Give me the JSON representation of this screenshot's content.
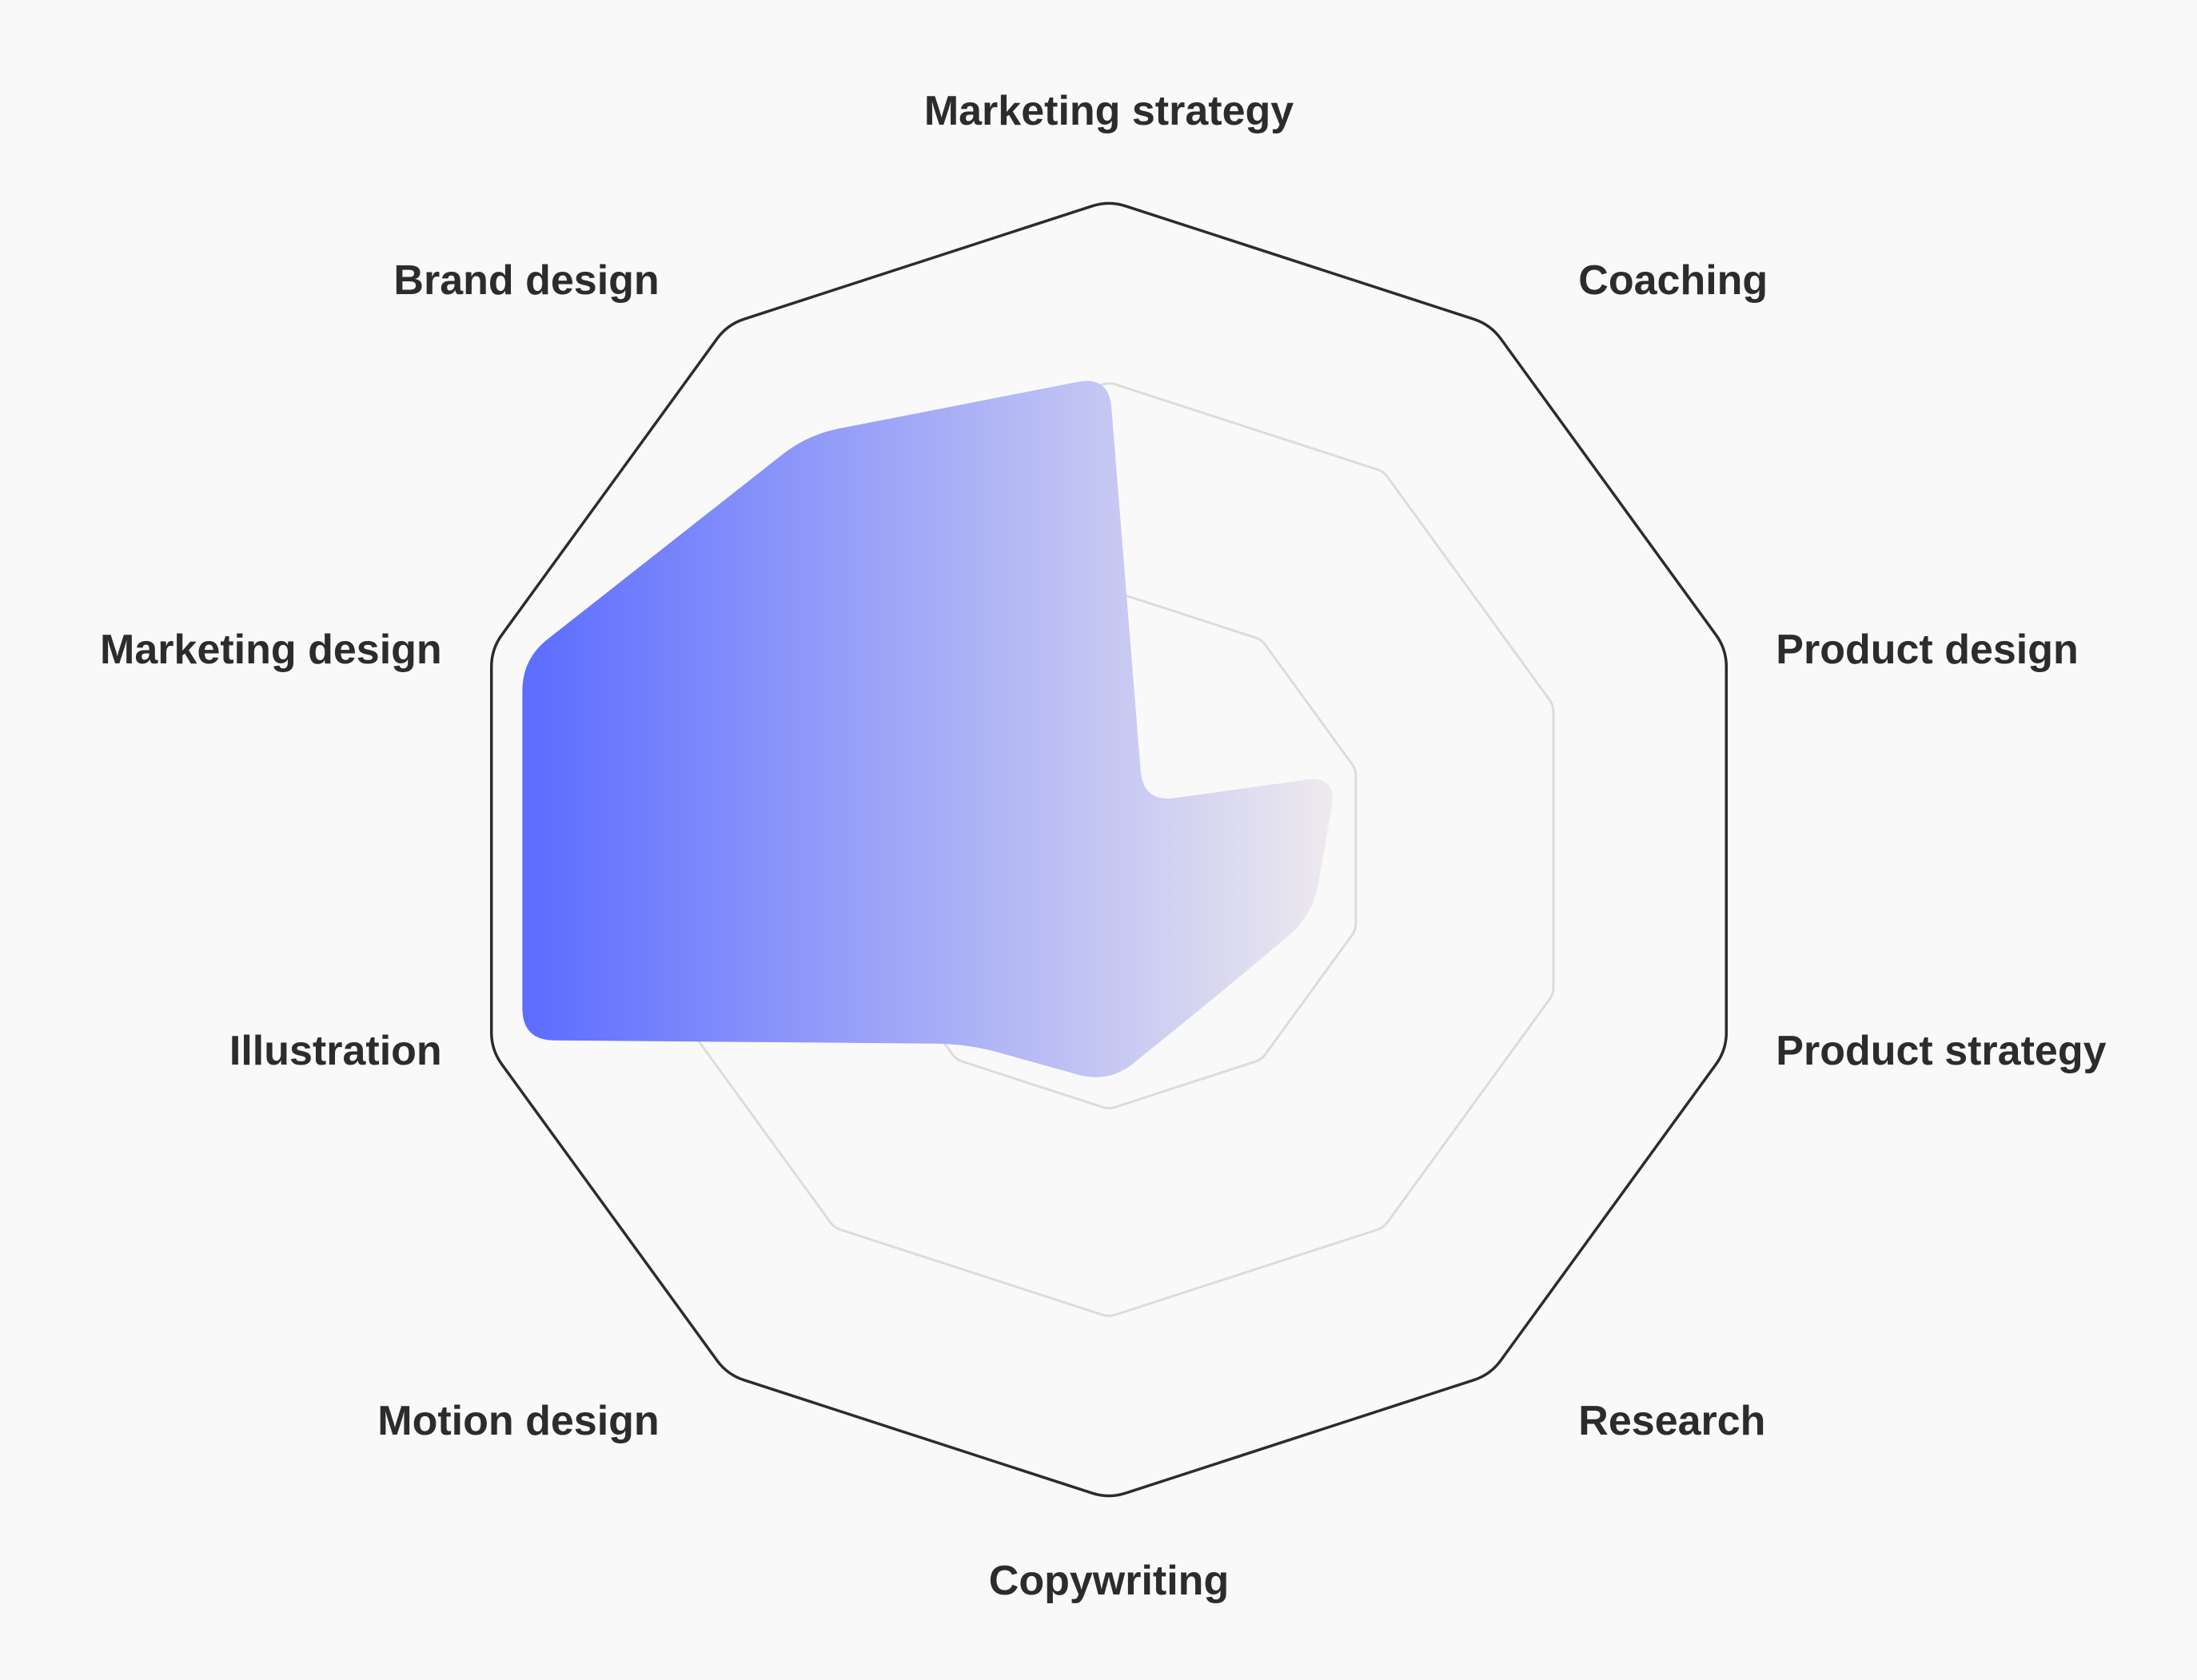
{
  "chart_data": {
    "type": "radar",
    "title": "",
    "axes": [
      "Marketing strategy",
      "Coaching",
      "Product design",
      "Product strategy",
      "Research",
      "Copywriting",
      "Motion design",
      "Illustration",
      "Marketing design",
      "Brand design"
    ],
    "rlim": [
      0,
      1
    ],
    "grid_levels": [
      0.4,
      0.72,
      1.0
    ],
    "series": [
      {
        "values": [
          0.73,
          0.09,
          0.37,
          0.33,
          0.28,
          0.36,
          0.37,
          0.95,
          0.95,
          0.79
        ]
      }
    ],
    "colors": {
      "fill_start": "#5b6cff",
      "fill_end": "#eeeaee",
      "outer_ring": "#2c2c2e",
      "inner_ring": "#dcdcd8",
      "label": "#2c2c2e",
      "background": "#f9f9f9"
    },
    "grid": true,
    "legend": "none"
  }
}
